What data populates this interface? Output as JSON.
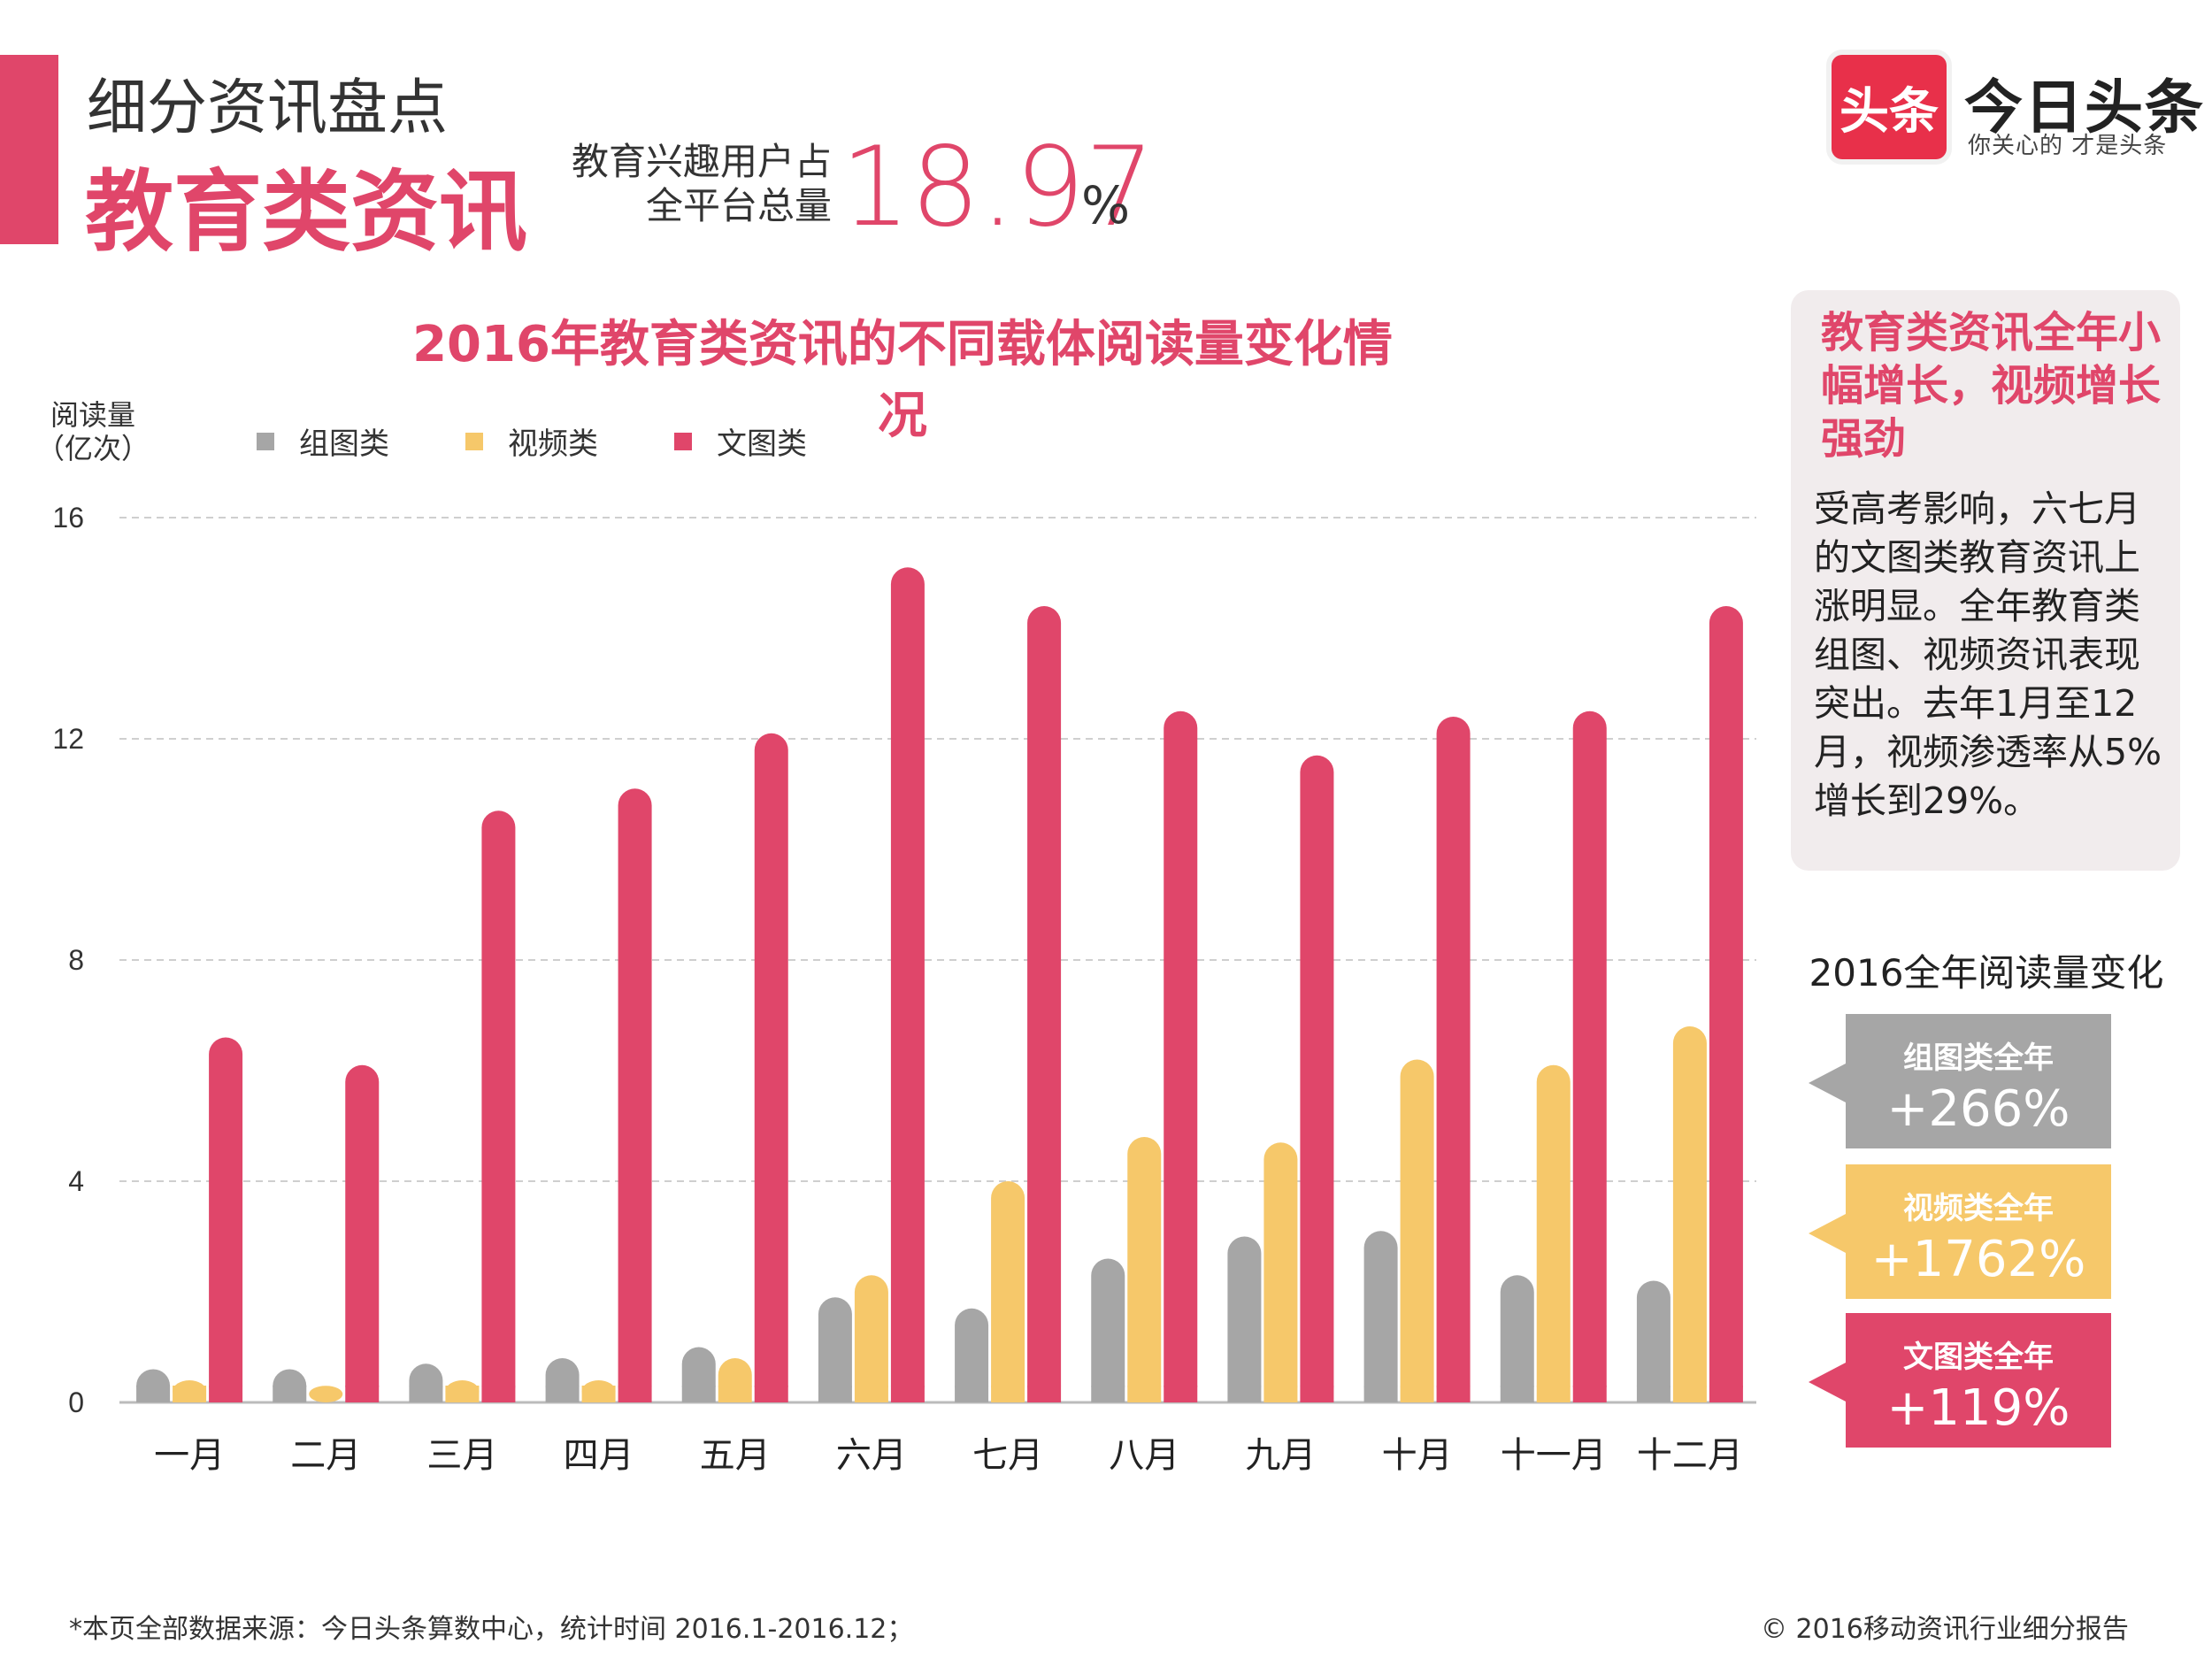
{
  "header": {
    "section_label": "细分资讯盘点",
    "section_title": "教育类资讯",
    "stat_desc_line1": "教育兴趣用户占",
    "stat_desc_line2": "全平台总量",
    "stat_value": "18.97",
    "stat_unit": "%"
  },
  "logo": {
    "badge_text": "头条",
    "name": "今日头条",
    "slogan": "你关心的 才是头条"
  },
  "colors": {
    "accent": "#e0466a",
    "gray_series": "#a6a6a6",
    "yellow_series": "#f6c86a",
    "red_series": "#e0466a",
    "panel_bg": "#f1eced"
  },
  "chart_data": {
    "type": "bar",
    "title": "2016年教育类资讯的不同载体阅读量变化情况",
    "ylabel_line1": "阅读量",
    "ylabel_line2": "（亿次）",
    "xlabel": "",
    "ylim": [
      0,
      16
    ],
    "yticks": [
      0,
      4,
      8,
      12,
      16
    ],
    "grid": true,
    "legend_position": "top-left",
    "categories": [
      "一月",
      "二月",
      "三月",
      "四月",
      "五月",
      "六月",
      "七月",
      "八月",
      "九月",
      "十月",
      "十一月",
      "十二月"
    ],
    "series": [
      {
        "name": "组图类",
        "color": "#a6a6a6",
        "values": [
          0.6,
          0.6,
          0.7,
          0.8,
          1.0,
          1.9,
          1.7,
          2.6,
          3.0,
          3.1,
          2.3,
          2.2
        ]
      },
      {
        "name": "视频类",
        "color": "#f6c86a",
        "values": [
          0.4,
          0.3,
          0.4,
          0.4,
          0.8,
          2.3,
          4.0,
          4.8,
          4.7,
          6.2,
          6.1,
          6.8
        ]
      },
      {
        "name": "文图类",
        "color": "#e0466a",
        "values": [
          6.6,
          6.1,
          10.7,
          11.1,
          12.1,
          15.1,
          14.4,
          12.5,
          11.7,
          12.4,
          12.5,
          14.4
        ]
      }
    ]
  },
  "summary": {
    "headline": "教育类资讯全年小幅增长，视频增长强劲",
    "body": "受高考影响，六七月的文图类教育资讯上涨明显。全年教育类组图、视频资讯表现突出。去年1月至12月，视频渗透率从5%增长到29%。"
  },
  "annual_change": {
    "title": "2016全年阅读量变化",
    "cards": [
      {
        "label": "组图类全年",
        "value": "+266%"
      },
      {
        "label": "视频类全年",
        "value": "+1762%"
      },
      {
        "label": "文图类全年",
        "value": "+119%"
      }
    ]
  },
  "footer": {
    "source": "*本页全部数据来源：今日头条算数中心，统计时间 2016.1-2016.12；",
    "copyright": "© 2016移动资讯行业细分报告"
  }
}
